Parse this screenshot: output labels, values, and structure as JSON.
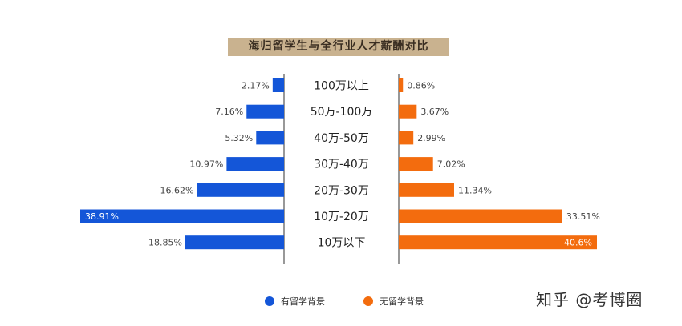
{
  "chart_data": {
    "type": "bar",
    "title": "海归留学生与全行业人才薪酬对比",
    "categories": [
      "100万以上",
      "50万-100万",
      "40万-50万",
      "30万-40万",
      "20万-30万",
      "10万-20万",
      "10万以下"
    ],
    "series": [
      {
        "name": "有留学背景",
        "color": "#1456d8",
        "values": [
          2.17,
          7.16,
          5.32,
          10.97,
          16.62,
          38.91,
          18.85
        ],
        "labels": [
          "2.17%",
          "7.16%",
          "5.32%",
          "10.97%",
          "16.62%",
          "38.91%",
          "18.85%"
        ]
      },
      {
        "name": "无留学背景",
        "color": "#f36c0e",
        "values": [
          0.86,
          3.67,
          2.99,
          7.02,
          11.34,
          33.51,
          40.6
        ],
        "labels": [
          "0.86%",
          "3.67%",
          "2.99%",
          "7.02%",
          "11.34%",
          "33.51%",
          "40.6%"
        ]
      }
    ],
    "legend": "bottom",
    "grid": false
  },
  "watermark": "知乎 @考博圈"
}
